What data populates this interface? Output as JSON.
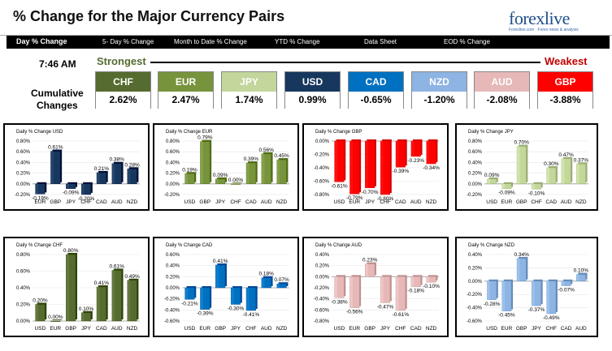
{
  "header": {
    "title": "% Change for the Major Currency Pairs",
    "logo_text": "forexlive",
    "logo_tagline": "Forexlive.com · Forex news & analysis"
  },
  "tabs": [
    {
      "label": "Day % Change",
      "active": true
    },
    {
      "label": "5- Day % Change",
      "active": false
    },
    {
      "label": "Month to Date % Change",
      "active": false
    },
    {
      "label": "YTD % Change",
      "active": false
    },
    {
      "label": "Data Sheet",
      "active": false
    },
    {
      "label": "EOD % Change",
      "active": false
    }
  ],
  "time": "7:46 AM",
  "cumulative_label_1": "Cumulative",
  "cumulative_label_2": "Changes",
  "strongest_label": "Strongest",
  "weakest_label": "Weakest",
  "currencies": [
    {
      "code": "CHF",
      "value": "2.62%",
      "color": "#556b2f"
    },
    {
      "code": "EUR",
      "value": "2.47%",
      "color": "#77933c"
    },
    {
      "code": "JPY",
      "value": "1.74%",
      "color": "#c3d69b"
    },
    {
      "code": "USD",
      "value": "0.99%",
      "color": "#17375e"
    },
    {
      "code": "CAD",
      "value": "-0.65%",
      "color": "#0070c0"
    },
    {
      "code": "NZD",
      "value": "-1.20%",
      "color": "#8db4e2"
    },
    {
      "code": "AUD",
      "value": "-2.08%",
      "color": "#e6b8b7"
    },
    {
      "code": "GBP",
      "value": "-3.88%",
      "color": "#ff0000"
    }
  ],
  "chart_data": [
    {
      "type": "bar",
      "title": "Daily % Change USD",
      "categories": [
        "EUR",
        "GBP",
        "JPY",
        "CHF",
        "CAD",
        "AUD",
        "NZD"
      ],
      "values": [
        -0.19,
        0.61,
        -0.09,
        -0.2,
        0.21,
        0.38,
        0.28
      ],
      "labels": [
        "-0.19%",
        "0.61%",
        "-0.09%",
        "-0.20%",
        "0.21%",
        "0.38%",
        "0.28%"
      ],
      "ylim": [
        -0.2,
        0.8
      ],
      "ticks": [
        "0.80%",
        "0.60%",
        "0.40%",
        "0.20%",
        "0.00%",
        "-0.20%"
      ],
      "color": "#17375e"
    },
    {
      "type": "bar",
      "title": "Daily % Change EUR",
      "categories": [
        "USD",
        "GBP",
        "JPY",
        "CHF",
        "CAD",
        "AUD",
        "NZD"
      ],
      "values": [
        0.19,
        0.79,
        0.09,
        0.0,
        0.39,
        0.56,
        0.45
      ],
      "labels": [
        "0.19%",
        "0.79%",
        "0.09%",
        "0.00%",
        "0.39%",
        "0.56%",
        "0.45%"
      ],
      "ylim": [
        -0.2,
        0.8
      ],
      "ticks": [
        "0.80%",
        "0.60%",
        "0.40%",
        "0.20%",
        "0.00%",
        "-0.20%"
      ],
      "color": "#77933c"
    },
    {
      "type": "bar",
      "title": "Daily % Change GBP",
      "categories": [
        "USD",
        "EUR",
        "JPY",
        "CHF",
        "CAD",
        "AUD",
        "NZD"
      ],
      "values": [
        -0.61,
        -0.79,
        -0.7,
        -0.8,
        -0.39,
        -0.23,
        -0.34
      ],
      "labels": [
        "-0.61%",
        "-0.79%",
        "-0.70%",
        "-0.80%",
        "-0.39%",
        "-0.23%",
        "-0.34%"
      ],
      "ylim": [
        -0.8,
        0.0
      ],
      "ticks": [
        "0.00%",
        "-0.20%",
        "-0.40%",
        "-0.60%",
        "-0.80%"
      ],
      "color": "#ff0000"
    },
    {
      "type": "bar",
      "title": "Daily % Change JPY",
      "categories": [
        "USD",
        "EUR",
        "GBP",
        "CHF",
        "CAD",
        "AUD",
        "NZD"
      ],
      "values": [
        0.09,
        -0.09,
        0.7,
        -0.1,
        0.3,
        0.47,
        0.37
      ],
      "labels": [
        "0.09%",
        "-0.09%",
        "0.70%",
        "-0.10%",
        "0.30%",
        "0.47%",
        "0.37%"
      ],
      "ylim": [
        -0.2,
        0.8
      ],
      "ticks": [
        "0.80%",
        "0.60%",
        "0.40%",
        "0.20%",
        "0.00%",
        "-0.20%"
      ],
      "color": "#c3d69b"
    },
    {
      "type": "bar",
      "title": "Daily % Change CHF",
      "categories": [
        "USD",
        "EUR",
        "GBP",
        "JPY",
        "CAD",
        "AUD",
        "NZD"
      ],
      "values": [
        0.2,
        0.0,
        0.8,
        0.1,
        0.41,
        0.61,
        0.49
      ],
      "labels": [
        "0.20%",
        "0.00%",
        "0.80%",
        "0.10%",
        "0.41%",
        "0.61%",
        "0.49%"
      ],
      "ylim": [
        0.0,
        0.8
      ],
      "ticks": [
        "0.80%",
        "0.60%",
        "0.40%",
        "0.20%",
        "0.00%"
      ],
      "color": "#556b2f"
    },
    {
      "type": "bar",
      "title": "Daily % Change CAD",
      "categories": [
        "USD",
        "EUR",
        "GBP",
        "JPY",
        "CHF",
        "AUD",
        "NZD"
      ],
      "values": [
        -0.21,
        -0.39,
        0.41,
        -0.3,
        -0.41,
        0.18,
        0.07
      ],
      "labels": [
        "-0.21%",
        "-0.39%",
        "0.41%",
        "-0.30%",
        "-0.41%",
        "0.18%",
        "0.07%"
      ],
      "ylim": [
        -0.6,
        0.6
      ],
      "ticks": [
        "0.60%",
        "0.40%",
        "0.20%",
        "0.00%",
        "-0.20%",
        "-0.40%",
        "-0.60%"
      ],
      "color": "#0070c0"
    },
    {
      "type": "bar",
      "title": "Daily % Change AUD",
      "categories": [
        "USD",
        "EUR",
        "GBP",
        "JPY",
        "CHF",
        "CAD",
        "NZD"
      ],
      "values": [
        -0.38,
        -0.56,
        0.23,
        -0.47,
        -0.61,
        -0.18,
        -0.1
      ],
      "labels": [
        "-0.38%",
        "-0.56%",
        "0.23%",
        "-0.47%",
        "-0.61%",
        "-0.18%",
        "-0.10%"
      ],
      "ylim": [
        -0.8,
        0.4
      ],
      "ticks": [
        "0.40%",
        "0.20%",
        "0.00%",
        "-0.20%",
        "-0.40%",
        "-0.60%",
        "-0.80%"
      ],
      "color": "#e6b8b7"
    },
    {
      "type": "bar",
      "title": "Daily % Change NZD",
      "categories": [
        "USD",
        "EUR",
        "GBP",
        "JPY",
        "CHF",
        "CAD",
        "AUD"
      ],
      "values": [
        -0.28,
        -0.45,
        0.34,
        -0.37,
        -0.49,
        -0.07,
        0.1
      ],
      "labels": [
        "-0.28%",
        "-0.45%",
        "0.34%",
        "-0.37%",
        "-0.49%",
        "-0.07%",
        "0.10%"
      ],
      "ylim": [
        -0.6,
        0.4
      ],
      "ticks": [
        "0.40%",
        "0.20%",
        "0.00%",
        "-0.20%",
        "-0.40%",
        "-0.60%"
      ],
      "color": "#8db4e2"
    }
  ]
}
